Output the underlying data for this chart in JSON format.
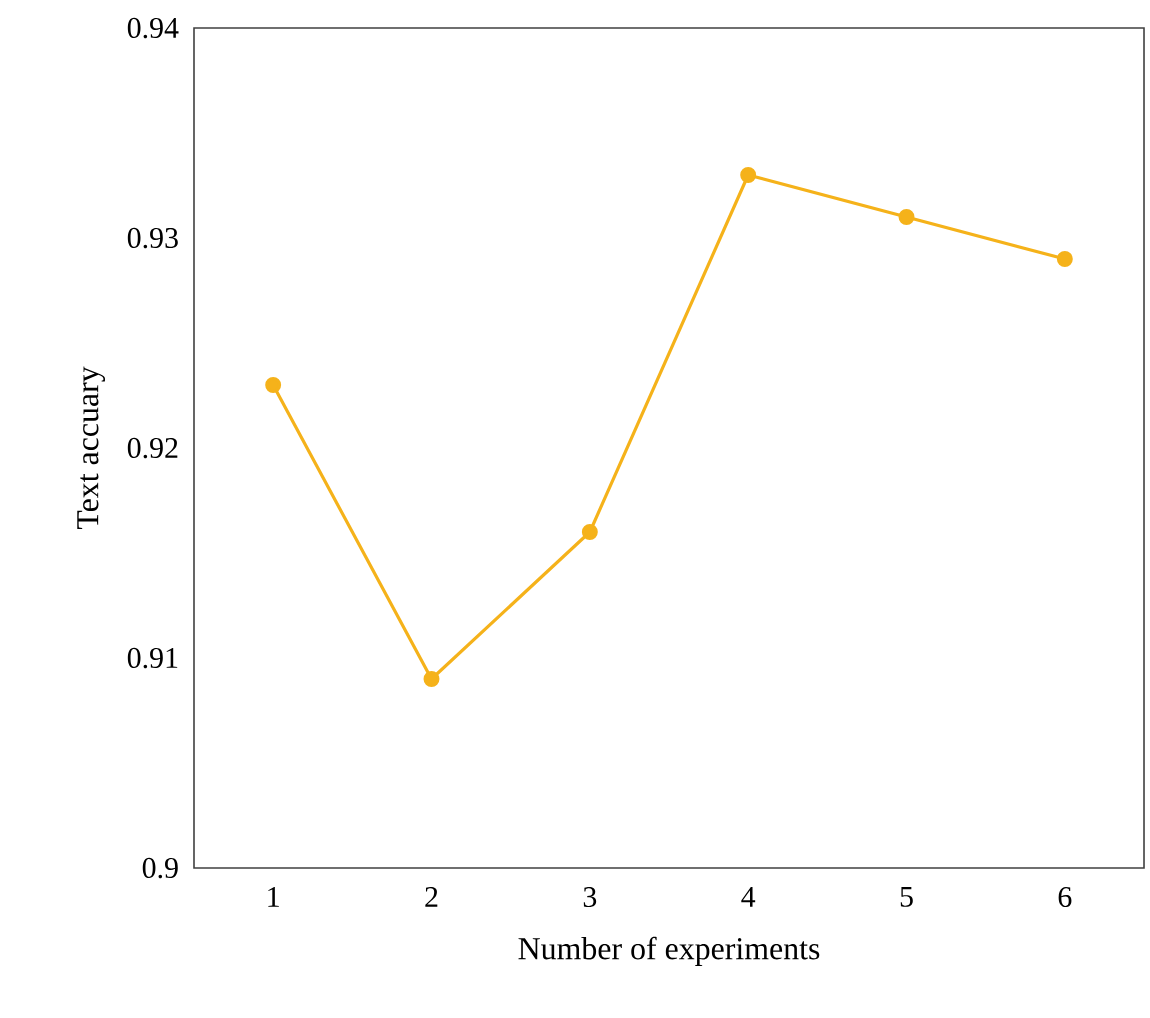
{
  "chart_data": {
    "type": "line",
    "xlabel": "Number of experiments",
    "ylabel": "Text accuary",
    "x": [
      1,
      2,
      3,
      4,
      5,
      6
    ],
    "series": [
      {
        "color": "#f5b21a",
        "values": [
          0.923,
          0.909,
          0.916,
          0.933,
          0.931,
          0.929
        ]
      }
    ],
    "xlim": [
      0.5,
      6.5
    ],
    "xticks": [
      1,
      2,
      3,
      4,
      5,
      6
    ],
    "ylim": [
      0.9,
      0.94
    ],
    "yticks": [
      0.9,
      0.91,
      0.92,
      0.93,
      0.94
    ],
    "marker": "circle",
    "line_style": "solid"
  }
}
